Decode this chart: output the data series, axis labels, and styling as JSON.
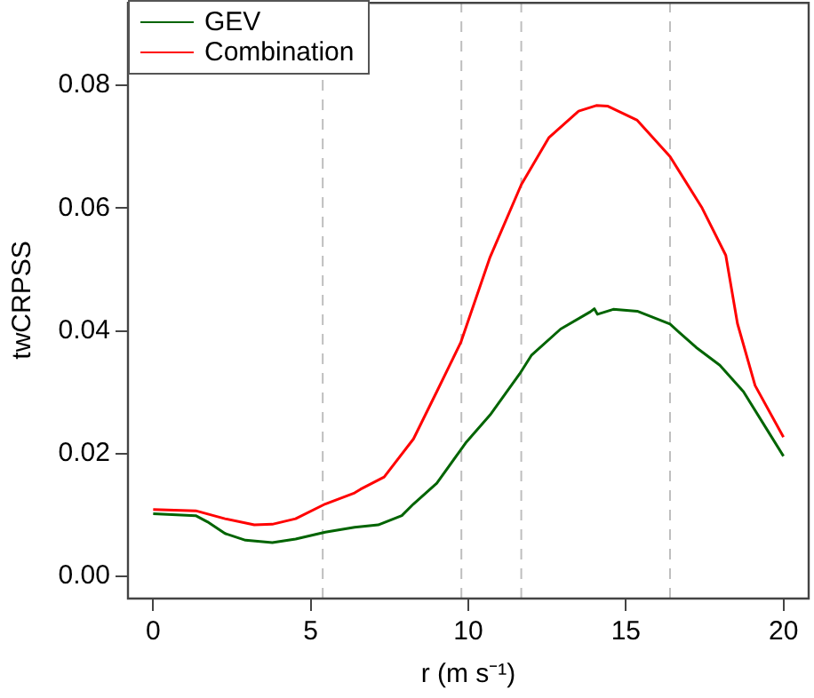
{
  "chart_data": {
    "type": "line",
    "xlabel": "r (m s⁻¹)",
    "ylabel": "twCRPSS",
    "xlim": [
      -0.8,
      20.8
    ],
    "xticks": [
      0,
      5,
      10,
      15,
      20
    ],
    "ylim": [
      -0.0036,
      0.0936
    ],
    "yticks": [
      {
        "value": 0,
        "label": "0.00"
      },
      {
        "value": 0.02,
        "label": "0.02"
      },
      {
        "value": 0.04,
        "label": "0.04"
      },
      {
        "value": 0.06,
        "label": "0.06"
      },
      {
        "value": 0.08,
        "label": "0.08"
      }
    ],
    "grid": false,
    "legend": "top left",
    "marker": "none",
    "line_style": "solid",
    "ref_lines": [
      {
        "axis": "x",
        "value": 5.38,
        "color": "#bebebe",
        "line_style": "dashed"
      },
      {
        "axis": "x",
        "value": 9.78,
        "color": "#bebebe",
        "line_style": "dashed"
      },
      {
        "axis": "x",
        "value": 11.68,
        "color": "#bebebe",
        "line_style": "dashed"
      },
      {
        "axis": "x",
        "value": 16.4,
        "color": "#bebebe",
        "line_style": "dashed"
      }
    ],
    "series": [
      {
        "name": "GEV",
        "color": "#006400",
        "x": [
          0,
          1.35,
          1.72,
          2.28,
          2.93,
          3.78,
          4.52,
          5.46,
          6.39,
          7.14,
          7.89,
          8.26,
          9.0,
          9.94,
          10.69,
          11.63,
          12.0,
          12.93,
          13.87,
          14.0,
          14.1,
          14.6,
          15.36,
          16.4,
          17.23,
          17.98,
          18.73,
          19.48,
          20
        ],
        "values": [
          0.0102,
          0.0099,
          0.0089,
          0.007,
          0.0059,
          0.0055,
          0.0061,
          0.0072,
          0.008,
          0.0084,
          0.0099,
          0.0118,
          0.0152,
          0.0219,
          0.0263,
          0.033,
          0.036,
          0.0403,
          0.0431,
          0.0436,
          0.0427,
          0.0435,
          0.0432,
          0.0411,
          0.0373,
          0.0344,
          0.0301,
          0.0239,
          0.0196
        ]
      },
      {
        "name": "Combination",
        "color": "#ff0000",
        "x": [
          0,
          1.35,
          2.28,
          3.21,
          3.78,
          4.52,
          5.46,
          6.39,
          6.58,
          7.33,
          8.26,
          9.0,
          9.76,
          10.69,
          11.68,
          12.56,
          13.5,
          14.06,
          14.43,
          15.36,
          16.4,
          17.42,
          18.17,
          18.54,
          19.1,
          20
        ],
        "values": [
          0.0109,
          0.0107,
          0.0094,
          0.0084,
          0.0085,
          0.0094,
          0.0118,
          0.0136,
          0.0142,
          0.0162,
          0.0224,
          0.0301,
          0.0381,
          0.052,
          0.0638,
          0.0715,
          0.0758,
          0.0767,
          0.0766,
          0.0743,
          0.0684,
          0.06,
          0.0523,
          0.0412,
          0.0311,
          0.0227
        ]
      }
    ]
  }
}
